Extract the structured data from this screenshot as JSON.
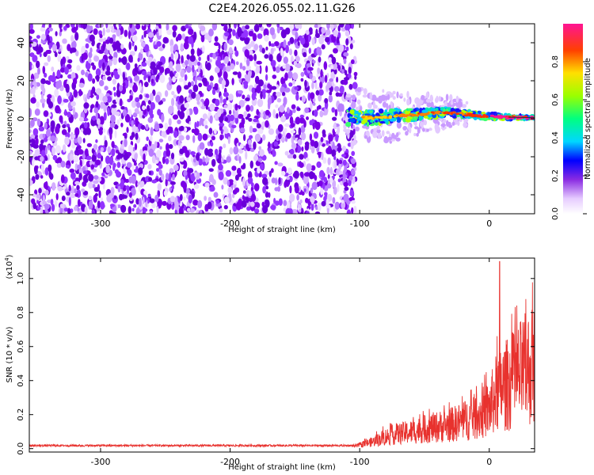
{
  "figure_title": "C2E4.2026.055.02.11.G26",
  "chart_data": [
    {
      "type": "heatmap",
      "xlabel": "Height of straight line (km)",
      "ylabel": "Frequency (Hz)",
      "xlim": [
        -355,
        35
      ],
      "ylim": [
        -50,
        50
      ],
      "x_ticks": [
        -300,
        -200,
        -100,
        0
      ],
      "y_ticks": [
        -40,
        -20,
        0,
        20,
        40
      ],
      "noise_region_x": [
        -355,
        -103
      ],
      "signal_track": [
        {
          "x": -110,
          "f": 1.0
        },
        {
          "x": -90,
          "f": 0.5
        },
        {
          "x": -70,
          "f": 1.5
        },
        {
          "x": -50,
          "f": 2.5
        },
        {
          "x": -35,
          "f": 3.5
        },
        {
          "x": -20,
          "f": 2.5
        },
        {
          "x": -10,
          "f": 1.8
        },
        {
          "x": 0,
          "f": 1.2
        },
        {
          "x": 15,
          "f": 0.8
        },
        {
          "x": 35,
          "f": 0.5
        }
      ],
      "colorbar": {
        "label": "Normalized spectral amplitude",
        "range": [
          0.0,
          1.0
        ],
        "ticks": [
          "0.0",
          "0.2",
          "0.4",
          "0.6",
          "0.8"
        ]
      }
    },
    {
      "type": "line",
      "xlabel": "Height of straight line (km)",
      "ylabel": "SNR (10 * v/v)",
      "y_multiplier": "(x10",
      "y_multiplier_exp": "4",
      "xlim": [
        -355,
        35
      ],
      "ylim": [
        -0.02,
        1.12
      ],
      "x_ticks": [
        -300,
        -200,
        -100,
        0
      ],
      "y_ticks": [
        "0.0",
        "0.2",
        "0.4",
        "0.6",
        "0.8",
        "1.0"
      ],
      "series": [
        {
          "name": "SNR",
          "color": "#e8322e",
          "envelope_x": [
            -355,
            -200,
            -105,
            -90,
            -80,
            -70,
            -60,
            -50,
            -40,
            -30,
            -20,
            -10,
            0,
            5,
            10,
            15,
            20,
            25,
            35
          ],
          "envelope_y": [
            0.02,
            0.025,
            0.02,
            0.07,
            0.12,
            0.15,
            0.17,
            0.2,
            0.22,
            0.24,
            0.28,
            0.33,
            0.4,
            0.55,
            0.62,
            0.66,
            0.7,
            0.77,
            0.86
          ],
          "peak_x": 8,
          "peak_y": 1.1
        }
      ]
    }
  ]
}
